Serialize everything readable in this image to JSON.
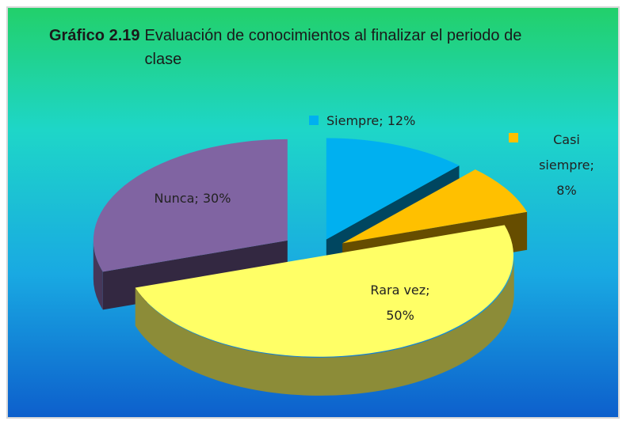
{
  "chart_data": {
    "type": "pie3d",
    "title_prefix": "Gráfico 2.19",
    "title": "Evaluación de conocimientos al finalizar el periodo de clase",
    "values": [
      12,
      8,
      50,
      30
    ],
    "value_labels": [
      "Siempre; 12%",
      "Casi siempre; 8%",
      "Rara vez; 50%",
      "Nunca; 30%"
    ],
    "colors": [
      "#00b0f0",
      "#ffc000",
      "#ffff66",
      "#8064a2"
    ]
  }
}
